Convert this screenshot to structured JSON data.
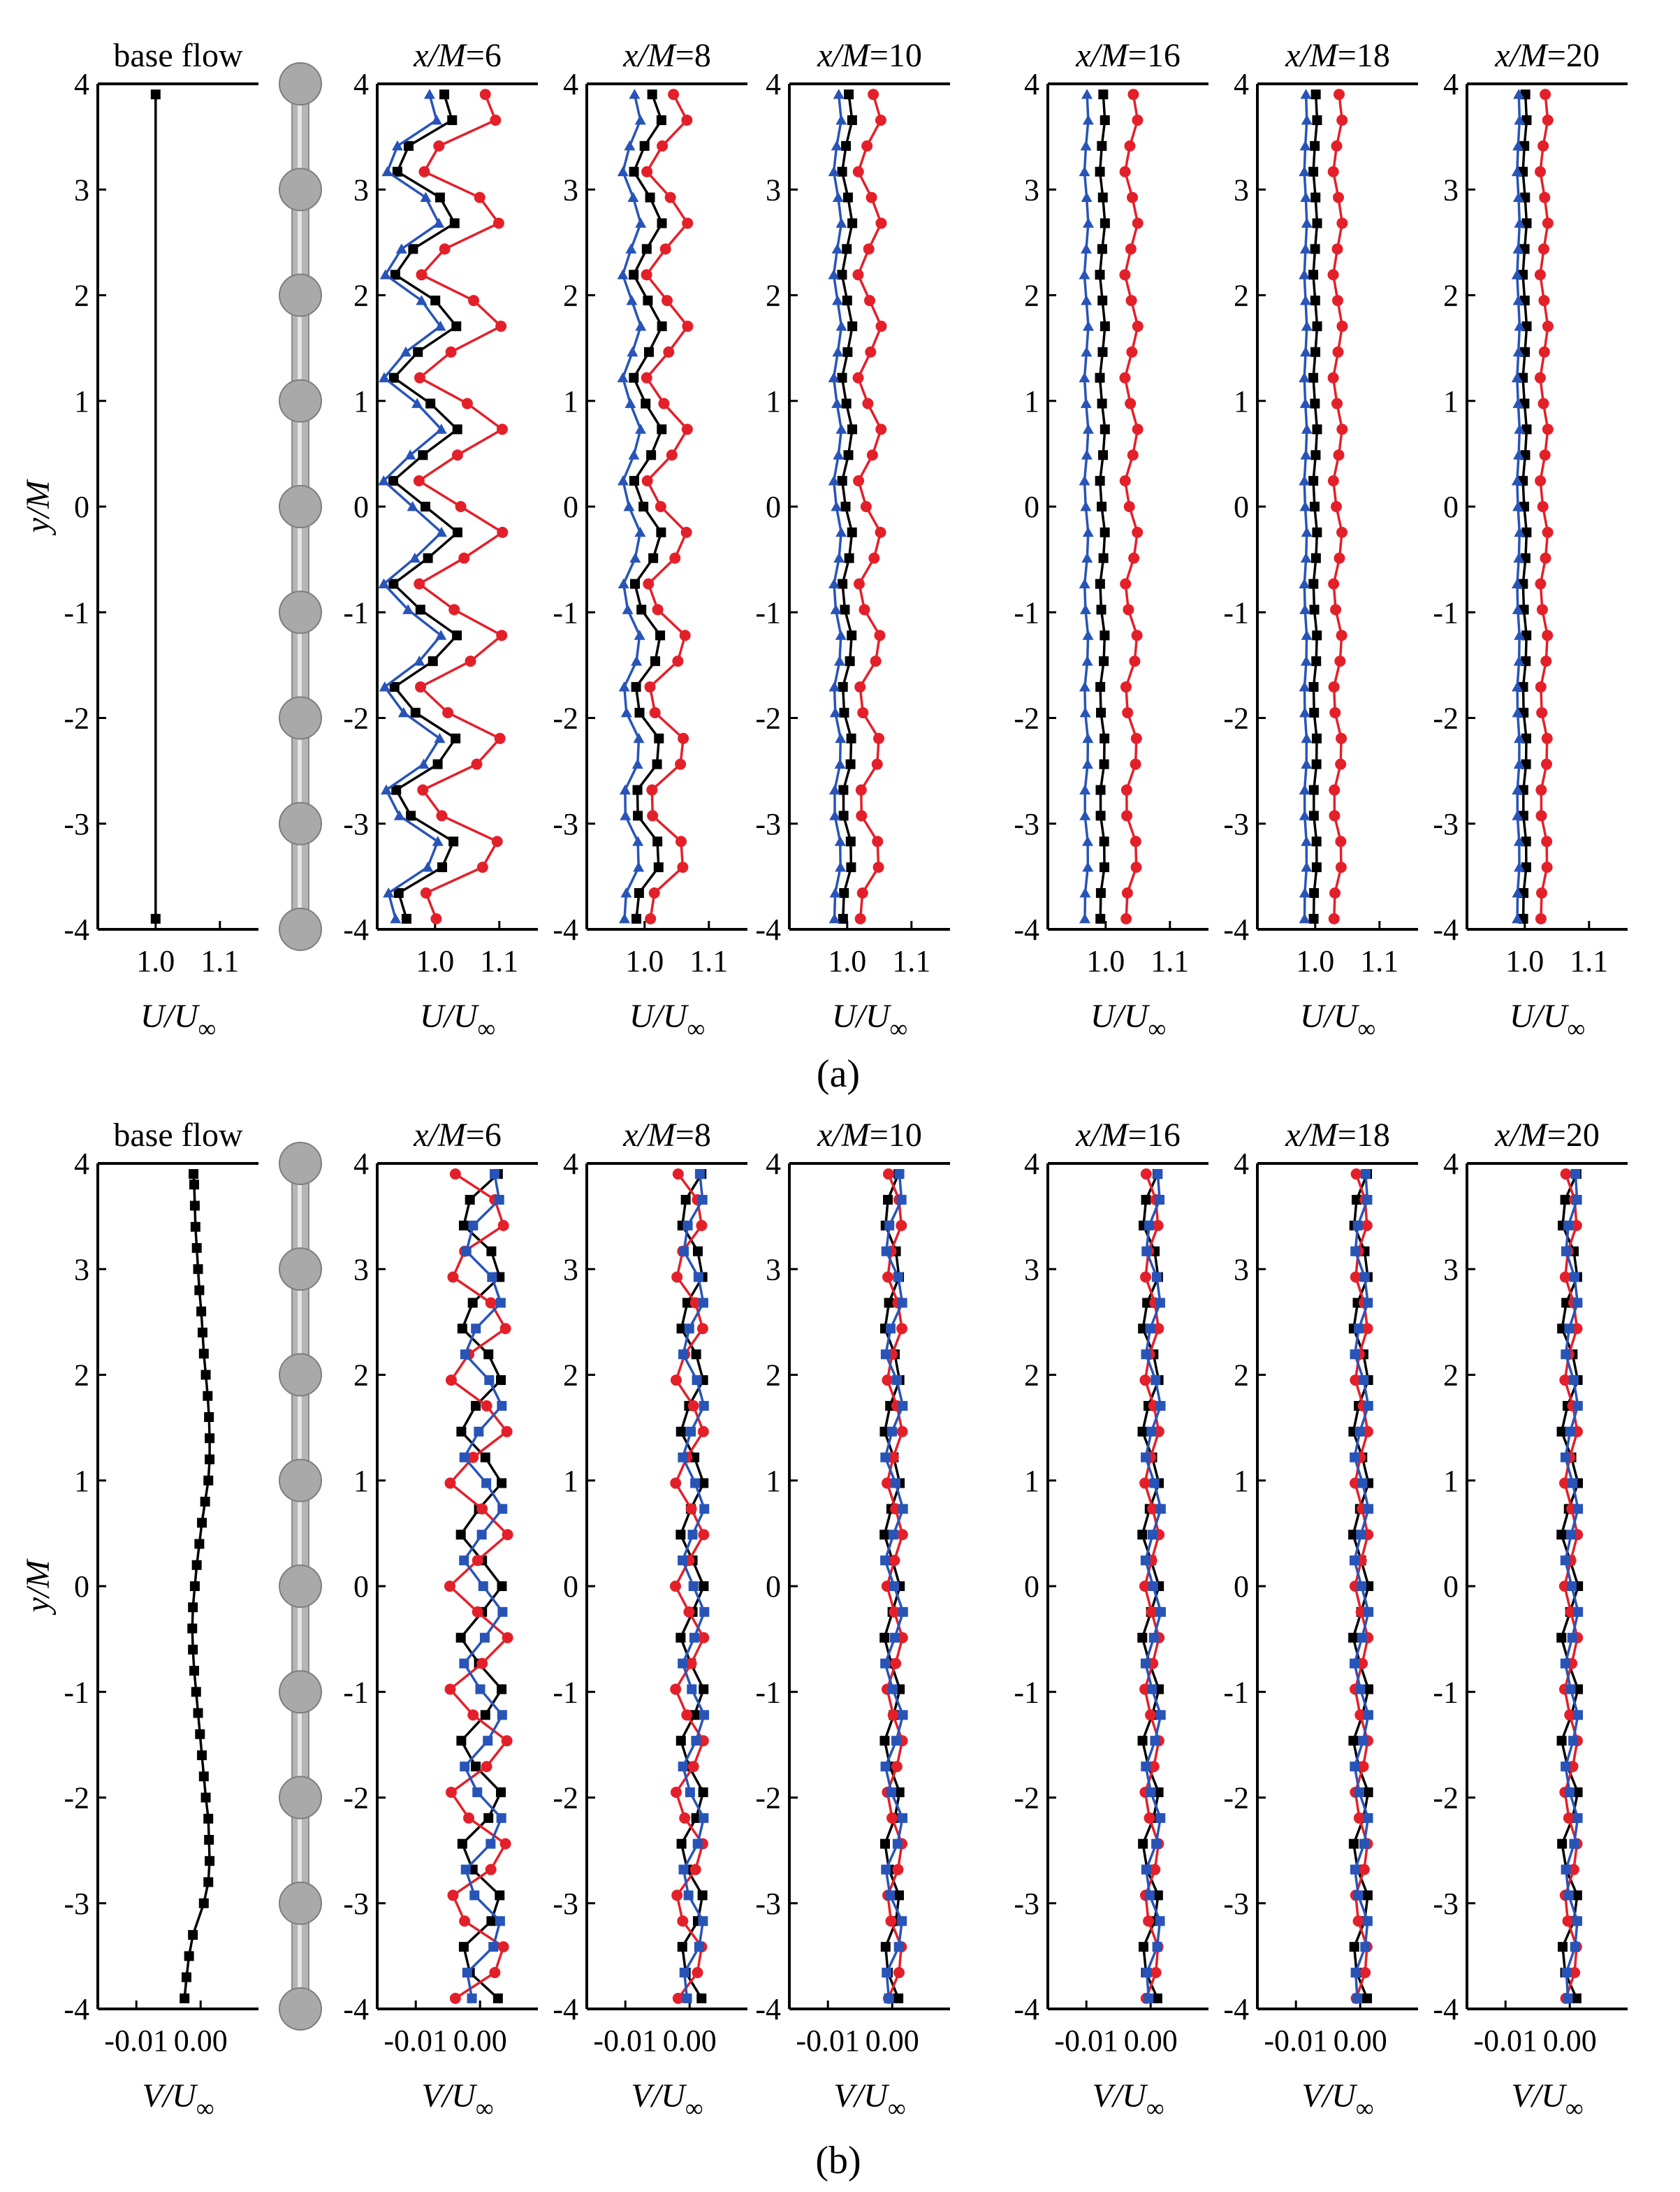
{
  "figure": {
    "label_a": "(a)",
    "label_b": "(b)",
    "colors": {
      "black_series": "#000000",
      "red_series": "#e3202a",
      "blue_series": "#2854b8",
      "rod": "#b5b5b5",
      "sphere": "#a9a9a9"
    },
    "legend_note": "Series colors: black squares, red circles, blue triangles/squares (legend not shown in image)",
    "ticks_a": [
      {
        "label": "1.0",
        "value": 1.0
      },
      {
        "label": "1.1",
        "value": 1.1
      }
    ],
    "ticks_b": [
      {
        "label": "-0.01",
        "value": -0.01
      },
      {
        "label": "0.00",
        "value": 0.0
      }
    ],
    "y_ticks": [
      "4",
      "3",
      "2",
      "1",
      "0",
      "-1",
      "-2",
      "-3",
      "-4"
    ],
    "ylabel": "y/M",
    "xlabel_a": "U/U∞",
    "xlabel_b": "V/U∞",
    "panel_titles": [
      "base flow",
      "x/M=6",
      "x/M=8",
      "x/M=10",
      "x/M=16",
      "x/M=18",
      "x/M=20"
    ]
  },
  "chart_data": [
    {
      "type": "line",
      "subfigure": "(a)",
      "title": "base flow",
      "xlabel": "U/U∞",
      "ylabel": "y/M",
      "xlim": [
        0.91,
        1.16
      ],
      "ylim": [
        -4,
        4
      ],
      "series": [
        {
          "name": "black",
          "marker": "square",
          "color": "#000000",
          "x": [
            1.0,
            1.0
          ],
          "y": [
            -3.9,
            3.9
          ]
        }
      ]
    },
    {
      "type": "line",
      "subfigure": "(a)",
      "title": "x/M=6",
      "xlabel": "U/U∞",
      "ylabel": "y/M",
      "xlim": [
        0.91,
        1.16
      ],
      "ylim": [
        -4,
        4
      ],
      "series": [
        {
          "name": "black",
          "marker": "square",
          "color": "#000000",
          "amp": 0.05,
          "center": 0.985,
          "phase": 0.25
        },
        {
          "name": "red",
          "marker": "circle",
          "color": "#e3202a",
          "amp": 0.065,
          "center": 1.04,
          "phase": 0.25
        },
        {
          "name": "blue",
          "marker": "triangle",
          "color": "#2854b8",
          "amp": 0.045,
          "center": 0.965,
          "phase": 0.25
        }
      ]
    },
    {
      "type": "line",
      "subfigure": "(a)",
      "title": "x/M=8",
      "xlabel": "U/U∞",
      "ylabel": "y/M",
      "xlim": [
        0.91,
        1.16
      ],
      "ylim": [
        -4,
        4
      ],
      "series": [
        {
          "name": "black",
          "marker": "square",
          "color": "#000000",
          "amp": 0.022,
          "center": 1.005,
          "phase": 0.3
        },
        {
          "name": "red",
          "marker": "circle",
          "color": "#e3202a",
          "amp": 0.032,
          "center": 1.035,
          "phase": 0.3
        },
        {
          "name": "blue",
          "marker": "triangle",
          "color": "#2854b8",
          "amp": 0.014,
          "center": 0.98,
          "phase": 0.3
        }
      ]
    },
    {
      "type": "line",
      "subfigure": "(a)",
      "title": "x/M=10",
      "xlabel": "U/U∞",
      "ylabel": "y/M",
      "xlim": [
        0.91,
        1.16
      ],
      "ylim": [
        -4,
        4
      ],
      "series": [
        {
          "name": "black",
          "marker": "square",
          "color": "#000000",
          "amp": 0.008,
          "center": 1.0,
          "phase": 0.3
        },
        {
          "name": "red",
          "marker": "circle",
          "color": "#e3202a",
          "amp": 0.018,
          "center": 1.035,
          "phase": 0.3
        },
        {
          "name": "blue",
          "marker": "triangle",
          "color": "#2854b8",
          "amp": 0.006,
          "center": 0.985,
          "phase": 0.3
        }
      ]
    },
    {
      "type": "line",
      "subfigure": "(a)",
      "title": "x/M=16",
      "xlabel": "U/U∞",
      "ylabel": "y/M",
      "xlim": [
        0.91,
        1.16
      ],
      "ylim": [
        -4,
        4
      ],
      "series": [
        {
          "name": "black",
          "marker": "square",
          "color": "#000000",
          "amp": 0.004,
          "center": 0.995,
          "phase": 0.3
        },
        {
          "name": "red",
          "marker": "circle",
          "color": "#e3202a",
          "amp": 0.01,
          "center": 1.04,
          "phase": 0.3
        },
        {
          "name": "blue",
          "marker": "triangle",
          "color": "#2854b8",
          "amp": 0.003,
          "center": 0.97,
          "phase": 0.3
        }
      ]
    },
    {
      "type": "line",
      "subfigure": "(a)",
      "title": "x/M=18",
      "xlabel": "U/U∞",
      "ylabel": "y/M",
      "xlim": [
        0.91,
        1.16
      ],
      "ylim": [
        -4,
        4
      ],
      "series": [
        {
          "name": "black",
          "marker": "square",
          "color": "#000000",
          "amp": 0.003,
          "center": 1.0,
          "phase": 0.3
        },
        {
          "name": "red",
          "marker": "circle",
          "color": "#e3202a",
          "amp": 0.007,
          "center": 1.035,
          "phase": 0.3
        },
        {
          "name": "blue",
          "marker": "triangle",
          "color": "#2854b8",
          "amp": 0.002,
          "center": 0.985,
          "phase": 0.3
        }
      ]
    },
    {
      "type": "line",
      "subfigure": "(a)",
      "title": "x/M=20",
      "xlabel": "U/U∞",
      "ylabel": "y/M",
      "xlim": [
        0.91,
        1.16
      ],
      "ylim": [
        -4,
        4
      ],
      "series": [
        {
          "name": "black",
          "marker": "square",
          "color": "#000000",
          "amp": 0.003,
          "center": 1.0,
          "phase": 0.3
        },
        {
          "name": "red",
          "marker": "circle",
          "color": "#e3202a",
          "amp": 0.006,
          "center": 1.03,
          "phase": 0.3
        },
        {
          "name": "blue",
          "marker": "triangle",
          "color": "#2854b8",
          "amp": 0.002,
          "center": 0.99,
          "phase": 0.3
        }
      ]
    },
    {
      "type": "line",
      "subfigure": "(b)",
      "title": "base flow",
      "xlabel": "V/U∞",
      "ylabel": "y/M",
      "xlim": [
        -0.016,
        0.009
      ],
      "ylim": [
        -4,
        4
      ],
      "series": [
        {
          "name": "black",
          "marker": "square",
          "color": "#000000",
          "x": [
            -0.0025,
            -0.0022,
            -0.0018,
            -0.0012,
            0.0005,
            0.0012,
            0.0014,
            0.0013,
            0.0012,
            0.0008,
            0.0005,
            0.0002,
            -0.0001,
            -0.0004,
            -0.0007,
            -0.001,
            -0.0012,
            -0.0013,
            -0.0012,
            -0.0009,
            -0.0006,
            -0.0002,
            0.0002,
            0.0007,
            0.0012,
            0.0014,
            0.0014,
            0.0013,
            0.0011,
            0.0008,
            0.0005,
            0.0003,
            0.0001,
            -0.0002,
            -0.0004,
            -0.0006,
            -0.0008,
            -0.0009,
            -0.001,
            -0.0011
          ],
          "y": [
            -3.9,
            -3.7,
            -3.5,
            -3.3,
            -3.0,
            -2.8,
            -2.6,
            -2.4,
            -2.2,
            -2.0,
            -1.8,
            -1.6,
            -1.4,
            -1.2,
            -1.0,
            -0.8,
            -0.6,
            -0.4,
            -0.2,
            0.0,
            0.2,
            0.4,
            0.6,
            0.8,
            1.0,
            1.2,
            1.4,
            1.6,
            1.8,
            2.0,
            2.2,
            2.4,
            2.6,
            2.8,
            3.0,
            3.2,
            3.4,
            3.6,
            3.8,
            3.9
          ]
        }
      ]
    },
    {
      "type": "line",
      "subfigure": "(b)",
      "title": "x/M=6",
      "xlabel": "V/U∞",
      "ylabel": "y/M",
      "xlim": [
        -0.016,
        0.009
      ],
      "ylim": [
        -4,
        4
      ],
      "series": [
        {
          "name": "black",
          "marker": "square",
          "color": "#000000",
          "amp": 0.0032,
          "center": 0.0002,
          "phase": 0.0
        },
        {
          "name": "red",
          "marker": "circle",
          "color": "#e3202a",
          "amp": 0.0045,
          "center": -0.0002,
          "phase": 0.5
        },
        {
          "name": "blue",
          "marker": "square",
          "color": "#2854b8",
          "amp": 0.003,
          "center": 0.0005,
          "phase": 0.25
        }
      ]
    },
    {
      "type": "line",
      "subfigure": "(b)",
      "title": "x/M=8",
      "xlabel": "V/U∞",
      "ylabel": "y/M",
      "xlim": [
        -0.016,
        0.009
      ],
      "ylim": [
        -4,
        4
      ],
      "series": [
        {
          "name": "black",
          "marker": "square",
          "color": "#000000",
          "amp": 0.0018,
          "center": 0.0004,
          "phase": 0.0
        },
        {
          "name": "red",
          "marker": "circle",
          "color": "#e3202a",
          "amp": 0.0022,
          "center": 0.0,
          "phase": 0.5
        },
        {
          "name": "blue",
          "marker": "square",
          "color": "#2854b8",
          "amp": 0.0017,
          "center": 0.0006,
          "phase": 0.25
        }
      ]
    },
    {
      "type": "line",
      "subfigure": "(b)",
      "title": "x/M=10",
      "xlabel": "V/U∞",
      "ylabel": "y/M",
      "xlim": [
        -0.016,
        0.009
      ],
      "ylim": [
        -4,
        4
      ],
      "series": [
        {
          "name": "black",
          "marker": "square",
          "color": "#000000",
          "amp": 0.0012,
          "center": 0.0,
          "phase": 0.0
        },
        {
          "name": "red",
          "marker": "circle",
          "color": "#e3202a",
          "amp": 0.0012,
          "center": 0.0004,
          "phase": 0.5
        },
        {
          "name": "blue",
          "marker": "square",
          "color": "#2854b8",
          "amp": 0.0014,
          "center": 0.0003,
          "phase": 0.25
        }
      ]
    },
    {
      "type": "line",
      "subfigure": "(b)",
      "title": "x/M=16",
      "xlabel": "V/U∞",
      "ylabel": "y/M",
      "xlim": [
        -0.016,
        0.009
      ],
      "ylim": [
        -4,
        4
      ],
      "series": [
        {
          "name": "black",
          "marker": "square",
          "color": "#000000",
          "amp": 0.0013,
          "center": 0.0,
          "phase": 0.0
        },
        {
          "name": "red",
          "marker": "circle",
          "color": "#e3202a",
          "amp": 0.0011,
          "center": 0.0002,
          "phase": 0.5
        },
        {
          "name": "blue",
          "marker": "square",
          "color": "#2854b8",
          "amp": 0.0012,
          "center": 0.0004,
          "phase": 0.25
        }
      ]
    },
    {
      "type": "line",
      "subfigure": "(b)",
      "title": "x/M=18",
      "xlabel": "V/U∞",
      "ylabel": "y/M",
      "xlim": [
        -0.016,
        0.009
      ],
      "ylim": [
        -4,
        4
      ],
      "series": [
        {
          "name": "black",
          "marker": "square",
          "color": "#000000",
          "amp": 0.0012,
          "center": 0.0001,
          "phase": 0.0
        },
        {
          "name": "red",
          "marker": "circle",
          "color": "#e3202a",
          "amp": 0.001,
          "center": 0.0002,
          "phase": 0.5
        },
        {
          "name": "blue",
          "marker": "square",
          "color": "#2854b8",
          "amp": 0.0011,
          "center": 0.0002,
          "phase": 0.25
        }
      ]
    },
    {
      "type": "line",
      "subfigure": "(b)",
      "title": "x/M=20",
      "xlabel": "V/U∞",
      "ylabel": "y/M",
      "xlim": [
        -0.016,
        0.009
      ],
      "ylim": [
        -4,
        4
      ],
      "series": [
        {
          "name": "black",
          "marker": "square",
          "color": "#000000",
          "amp": 0.0013,
          "center": 0.0,
          "phase": 0.0
        },
        {
          "name": "red",
          "marker": "circle",
          "color": "#e3202a",
          "amp": 0.001,
          "center": 0.0002,
          "phase": 0.5
        },
        {
          "name": "blue",
          "marker": "square",
          "color": "#2854b8",
          "amp": 0.001,
          "center": 0.0003,
          "phase": 0.25
        }
      ]
    }
  ]
}
